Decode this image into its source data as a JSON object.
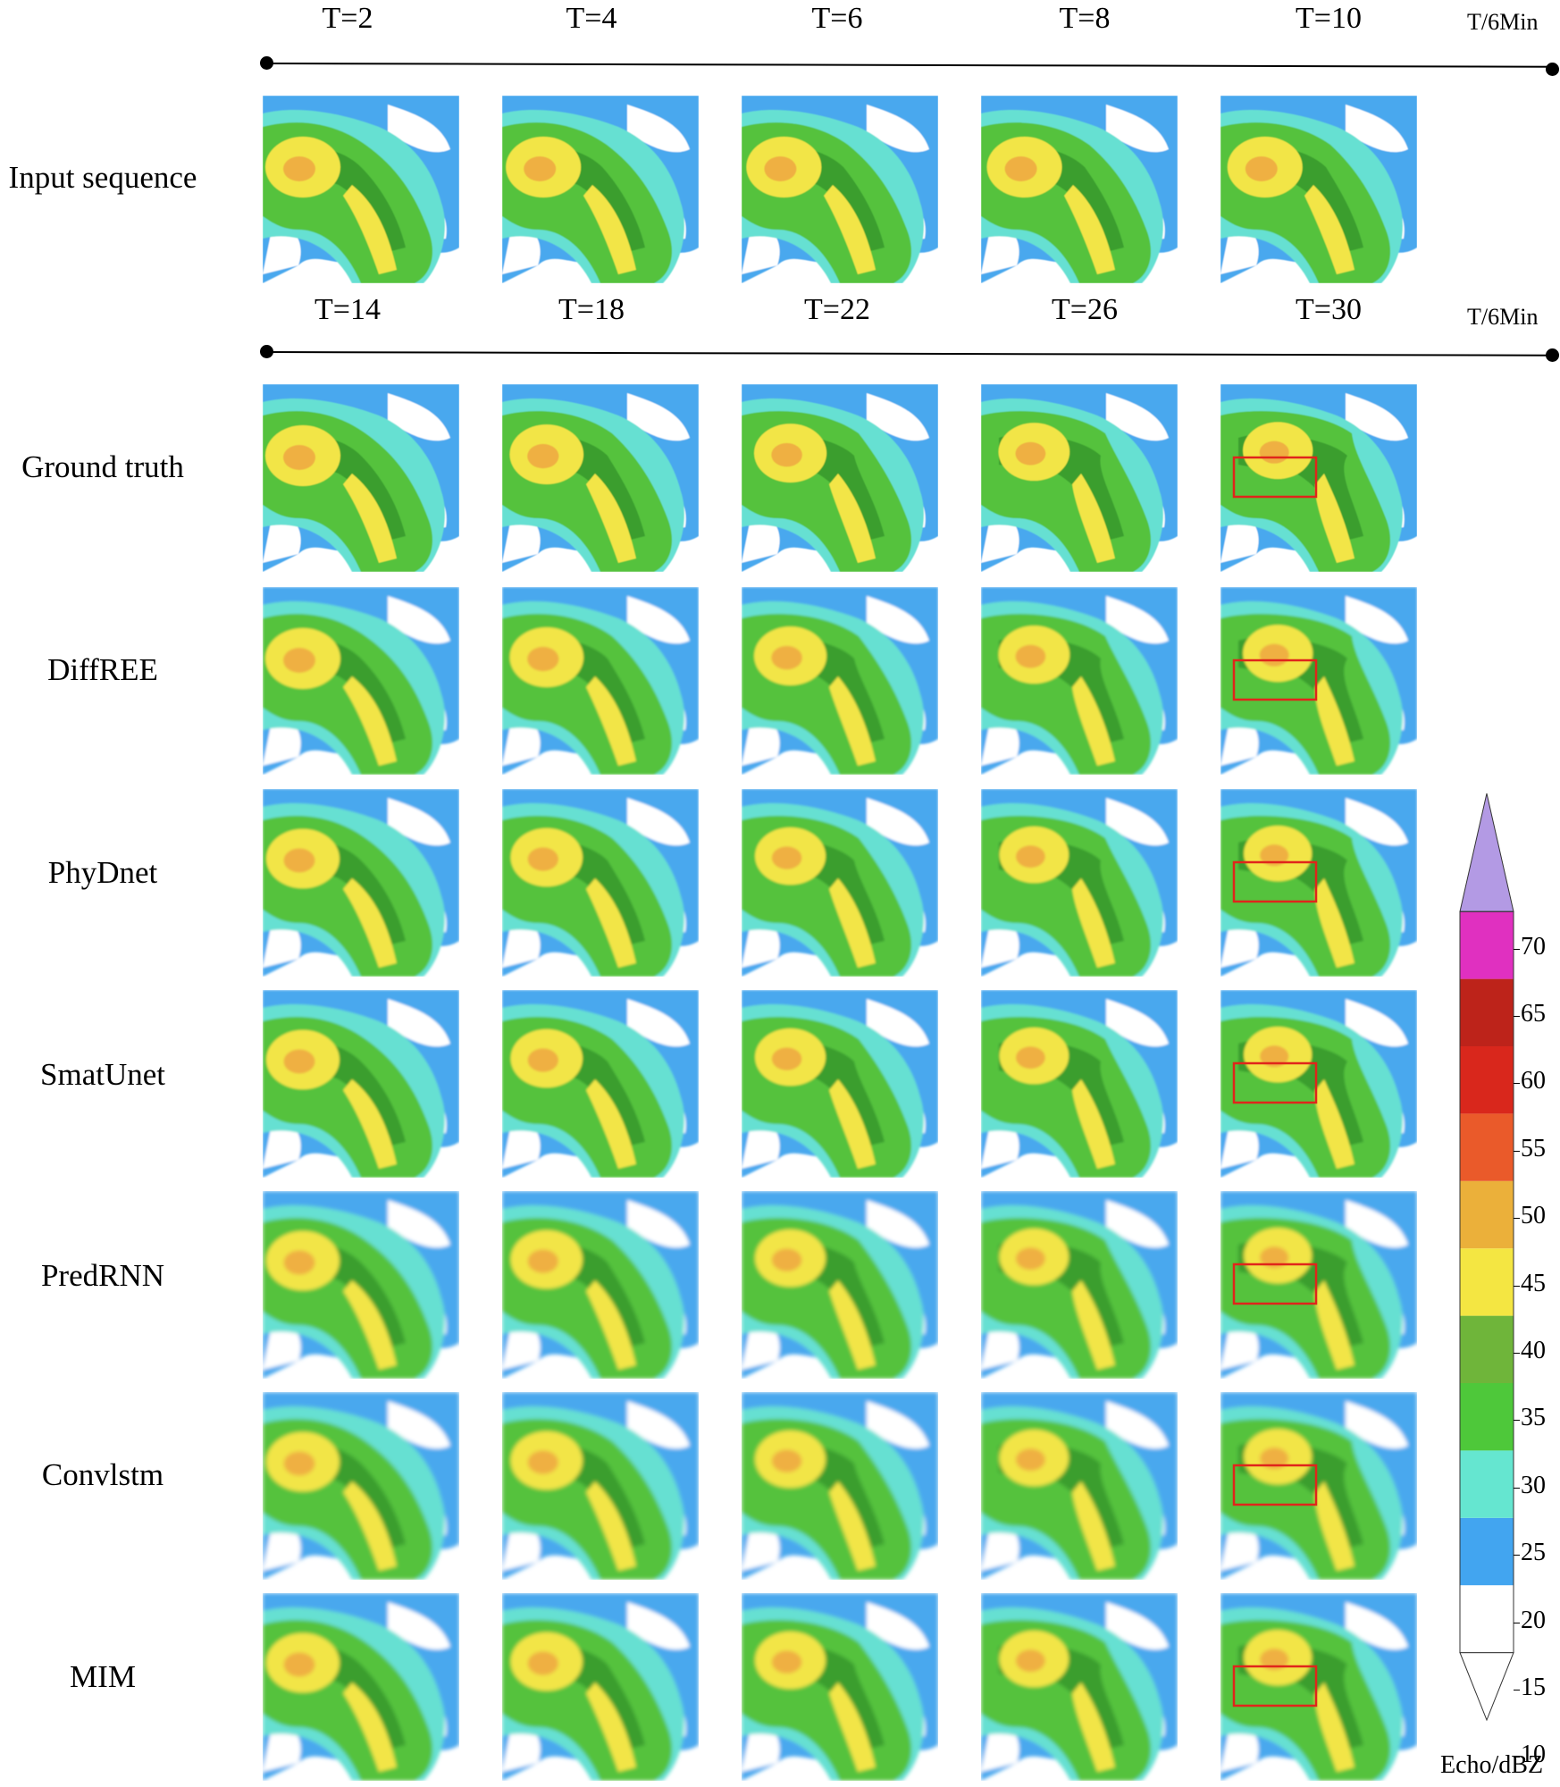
{
  "input_row": {
    "label": "Input sequence",
    "times": [
      "T=2",
      "T=4",
      "T=6",
      "T=8",
      "T=10"
    ],
    "unit": "T/6Min"
  },
  "output_rows": {
    "times": [
      "T=14",
      "T=18",
      "T=22",
      "T=26",
      "T=30"
    ],
    "unit": "T/6Min",
    "methods": [
      "Ground truth",
      "DiffREE",
      "PhyDnet",
      "SmatUnet",
      "PredRNN",
      "Convlstm",
      "MIM"
    ]
  },
  "colorbar": {
    "title": "Echo/dBZ",
    "ticks": [
      "70",
      "65",
      "60",
      "55",
      "50",
      "45",
      "40",
      "35",
      "30",
      "25",
      "20",
      "15",
      "10"
    ],
    "colors": [
      "#ffffff",
      "#ffffff",
      "#42a5f0",
      "#65e6d0",
      "#4ec83a",
      "#6fb53a",
      "#f4e642",
      "#ebb03a",
      "#ea5a2a",
      "#d9271c",
      "#bd231a",
      "#e030c0",
      "#b39ae4"
    ],
    "highlight_color": "#e0251b"
  }
}
